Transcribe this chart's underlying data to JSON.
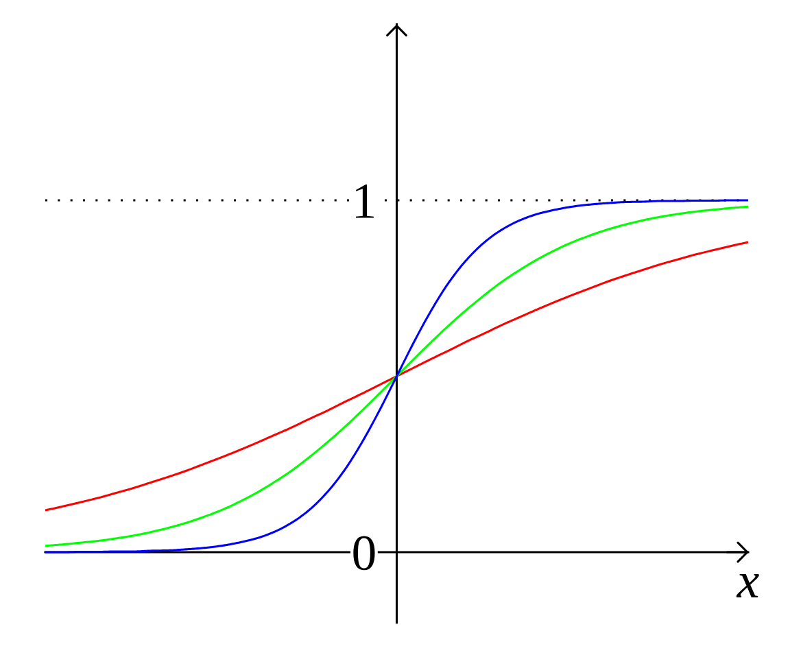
{
  "chart_data": {
    "type": "line",
    "categories": [
      null,
      null,
      null,
      null,
      null,
      null,
      null,
      null,
      null,
      null,
      null,
      null,
      null,
      null,
      null,
      null,
      null,
      null,
      null,
      null,
      null,
      null,
      null,
      null,
      null,
      null,
      null,
      null,
      null,
      null,
      null,
      null,
      null,
      null,
      null,
      null,
      null,
      null,
      null,
      null,
      null
    ],
    "series": [
      {
        "color": "#ff0000",
        "values": [
          0.119,
          0.13,
          0.142,
          0.154,
          0.168,
          0.182,
          0.198,
          0.214,
          0.231,
          0.25,
          0.269,
          0.289,
          0.31,
          0.332,
          0.354,
          0.378,
          0.401,
          0.426,
          0.45,
          0.475,
          0.5,
          0.525,
          0.55,
          0.574,
          0.599,
          0.622,
          0.646,
          0.668,
          0.69,
          0.711,
          0.731,
          0.75,
          0.769,
          0.786,
          0.802,
          0.818,
          0.832,
          0.846,
          0.858,
          0.87,
          0.881
        ]
      },
      {
        "color": "#00ff00",
        "values": [
          0.018,
          0.022,
          0.027,
          0.032,
          0.039,
          0.047,
          0.057,
          0.069,
          0.083,
          0.1,
          0.119,
          0.142,
          0.168,
          0.198,
          0.231,
          0.269,
          0.31,
          0.354,
          0.401,
          0.45,
          0.5,
          0.55,
          0.599,
          0.646,
          0.69,
          0.731,
          0.769,
          0.802,
          0.832,
          0.858,
          0.881,
          0.9,
          0.917,
          0.931,
          0.943,
          0.953,
          0.961,
          0.968,
          0.973,
          0.978,
          0.982
        ]
      },
      {
        "color": "#0000ff",
        "values": [
          0.0,
          0.0,
          0.001,
          0.001,
          0.002,
          0.002,
          0.004,
          0.005,
          0.008,
          0.012,
          0.018,
          0.027,
          0.039,
          0.057,
          0.083,
          0.119,
          0.168,
          0.231,
          0.31,
          0.401,
          0.5,
          0.599,
          0.69,
          0.769,
          0.832,
          0.881,
          0.917,
          0.943,
          0.961,
          0.973,
          0.982,
          0.988,
          0.992,
          0.995,
          0.996,
          0.998,
          0.998,
          0.999,
          0.999,
          1.0,
          1.0
        ]
      }
    ],
    "xlabel": "x",
    "ylim": [
      -0.2,
      1.5
    ],
    "yticks": [
      0,
      1
    ],
    "ref_lines": [
      {
        "axis": "y",
        "value": 1,
        "color": "#000000",
        "line_style": "dotted"
      }
    ],
    "tick_labels": "y",
    "line_style": "solid"
  }
}
